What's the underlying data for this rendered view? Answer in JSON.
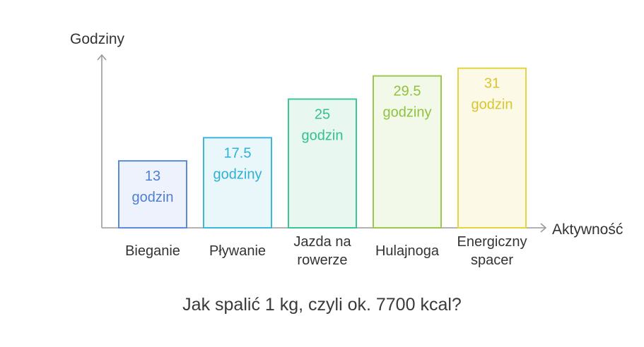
{
  "chart_data": {
    "type": "bar",
    "xlabel": "Aktywność",
    "ylabel": "Godziny",
    "caption": "Jak spalić 1 kg, czyli ok. 7700 kcal?",
    "ylim": [
      0,
      33
    ],
    "categories": [
      {
        "lines": [
          "Bieganie"
        ]
      },
      {
        "lines": [
          "Pływanie"
        ]
      },
      {
        "lines": [
          "Jazda na",
          "rowerze"
        ]
      },
      {
        "lines": [
          "Hulajnoga"
        ]
      },
      {
        "lines": [
          "Energiczny",
          "spacer"
        ]
      }
    ],
    "values": [
      13,
      17.5,
      25,
      29.5,
      31
    ],
    "value_labels": [
      [
        "13",
        "godzin"
      ],
      [
        "17.5",
        "godziny"
      ],
      [
        "25",
        "godzin"
      ],
      [
        "29.5",
        "godziny"
      ],
      [
        "31",
        "godzin"
      ]
    ],
    "colors": [
      {
        "stroke": "#5b8bd6",
        "fill": "#edf2fc",
        "text": "#4f80d0"
      },
      {
        "stroke": "#3cb8d9",
        "fill": "#e9f7fb",
        "text": "#2fb0d4"
      },
      {
        "stroke": "#3ec596",
        "fill": "#e8f8f1",
        "text": "#34c08f"
      },
      {
        "stroke": "#9bc94b",
        "fill": "#f2f9e8",
        "text": "#90c23f"
      },
      {
        "stroke": "#e3d440",
        "fill": "#fcfae6",
        "text": "#d8c631"
      }
    ],
    "axis_color": "#9a9a9a",
    "grid": false,
    "legend": "none"
  }
}
